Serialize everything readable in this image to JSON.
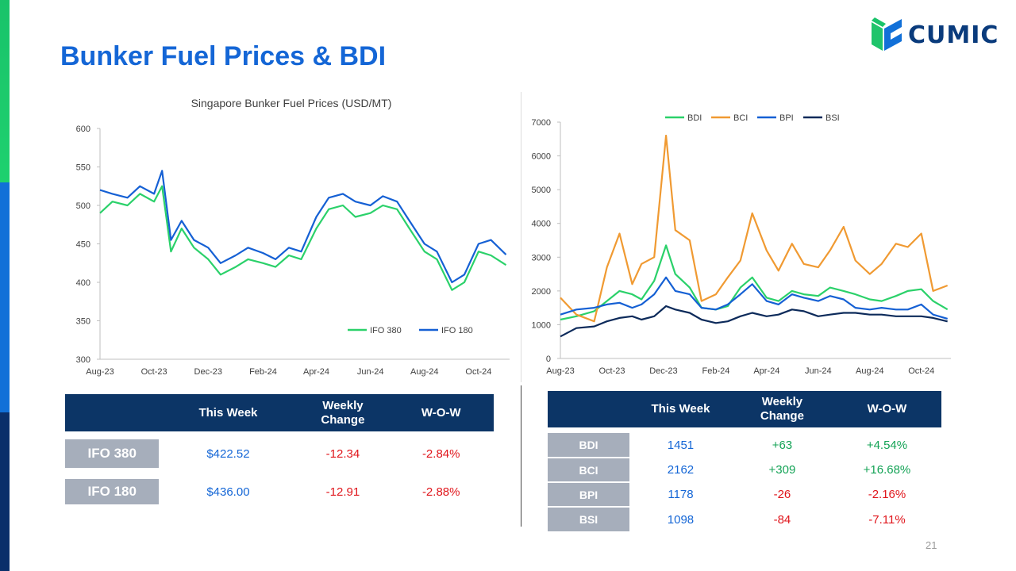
{
  "slide": {
    "title": "Bunker Fuel Prices & BDI",
    "page_number": "21"
  },
  "logo": {
    "text": "CUMIC"
  },
  "colors": {
    "title": "#1466d6",
    "table_header": "#0c3566",
    "row_label": "#a6aebb",
    "positive": "#14a356",
    "negative": "#e0151b",
    "value": "#1466d6"
  },
  "chart_data": [
    {
      "type": "line",
      "title": "Singapore Bunker Fuel Prices (USD/MT)",
      "x_tick_labels": [
        "Aug-23",
        "Oct-23",
        "Dec-23",
        "Feb-24",
        "Apr-24",
        "Jun-24",
        "Aug-24",
        "Oct-24"
      ],
      "x_range": [
        "2023-08-01",
        "2024-11-05"
      ],
      "ylim": [
        300,
        600
      ],
      "y_ticks": [
        300,
        350,
        400,
        450,
        500,
        550,
        600
      ],
      "legend_position": "bottom-right",
      "grid": false,
      "series": [
        {
          "name": "IFO 380",
          "color": "#2bd16a",
          "points": [
            [
              "2023-08-01",
              490
            ],
            [
              "2023-08-15",
              505
            ],
            [
              "2023-09-01",
              500
            ],
            [
              "2023-09-15",
              515
            ],
            [
              "2023-10-01",
              505
            ],
            [
              "2023-10-10",
              525
            ],
            [
              "2023-10-20",
              440
            ],
            [
              "2023-11-01",
              470
            ],
            [
              "2023-11-15",
              445
            ],
            [
              "2023-12-01",
              430
            ],
            [
              "2023-12-15",
              410
            ],
            [
              "2024-01-01",
              420
            ],
            [
              "2024-01-15",
              430
            ],
            [
              "2024-02-01",
              425
            ],
            [
              "2024-02-15",
              420
            ],
            [
              "2024-03-01",
              435
            ],
            [
              "2024-03-15",
              430
            ],
            [
              "2024-04-01",
              470
            ],
            [
              "2024-04-15",
              495
            ],
            [
              "2024-05-01",
              500
            ],
            [
              "2024-05-15",
              485
            ],
            [
              "2024-06-01",
              490
            ],
            [
              "2024-06-15",
              500
            ],
            [
              "2024-07-01",
              495
            ],
            [
              "2024-07-15",
              470
            ],
            [
              "2024-08-01",
              440
            ],
            [
              "2024-08-15",
              430
            ],
            [
              "2024-09-01",
              390
            ],
            [
              "2024-09-15",
              400
            ],
            [
              "2024-10-01",
              440
            ],
            [
              "2024-10-15",
              435
            ],
            [
              "2024-11-01",
              422.52
            ]
          ]
        },
        {
          "name": "IFO 180",
          "color": "#1560d4",
          "points": [
            [
              "2023-08-01",
              520
            ],
            [
              "2023-08-15",
              515
            ],
            [
              "2023-09-01",
              510
            ],
            [
              "2023-09-15",
              525
            ],
            [
              "2023-10-01",
              515
            ],
            [
              "2023-10-10",
              545
            ],
            [
              "2023-10-20",
              455
            ],
            [
              "2023-11-01",
              480
            ],
            [
              "2023-11-15",
              455
            ],
            [
              "2023-12-01",
              445
            ],
            [
              "2023-12-15",
              425
            ],
            [
              "2024-01-01",
              435
            ],
            [
              "2024-01-15",
              445
            ],
            [
              "2024-02-01",
              438
            ],
            [
              "2024-02-15",
              430
            ],
            [
              "2024-03-01",
              445
            ],
            [
              "2024-03-15",
              440
            ],
            [
              "2024-04-01",
              485
            ],
            [
              "2024-04-15",
              510
            ],
            [
              "2024-05-01",
              515
            ],
            [
              "2024-05-15",
              505
            ],
            [
              "2024-06-01",
              500
            ],
            [
              "2024-06-15",
              512
            ],
            [
              "2024-07-01",
              505
            ],
            [
              "2024-07-15",
              480
            ],
            [
              "2024-08-01",
              450
            ],
            [
              "2024-08-15",
              440
            ],
            [
              "2024-09-01",
              400
            ],
            [
              "2024-09-15",
              410
            ],
            [
              "2024-10-01",
              450
            ],
            [
              "2024-10-15",
              455
            ],
            [
              "2024-11-01",
              436.0
            ]
          ]
        }
      ]
    },
    {
      "type": "line",
      "title": "",
      "x_tick_labels": [
        "Aug-23",
        "Oct-23",
        "Dec-23",
        "Feb-24",
        "Apr-24",
        "Jun-24",
        "Aug-24",
        "Oct-24"
      ],
      "x_range": [
        "2023-08-01",
        "2024-11-05"
      ],
      "ylim": [
        0,
        7000
      ],
      "y_ticks": [
        0,
        1000,
        2000,
        3000,
        4000,
        5000,
        6000,
        7000
      ],
      "legend_position": "top",
      "grid": false,
      "series": [
        {
          "name": "BDI",
          "color": "#2bd16a",
          "points": [
            [
              "2023-08-01",
              1150
            ],
            [
              "2023-08-20",
              1250
            ],
            [
              "2023-09-10",
              1400
            ],
            [
              "2023-09-25",
              1700
            ],
            [
              "2023-10-10",
              2000
            ],
            [
              "2023-10-25",
              1900
            ],
            [
              "2023-11-05",
              1750
            ],
            [
              "2023-11-20",
              2300
            ],
            [
              "2023-12-04",
              3350
            ],
            [
              "2023-12-15",
              2500
            ],
            [
              "2024-01-01",
              2100
            ],
            [
              "2024-01-15",
              1500
            ],
            [
              "2024-02-01",
              1450
            ],
            [
              "2024-02-15",
              1550
            ],
            [
              "2024-03-01",
              2100
            ],
            [
              "2024-03-15",
              2400
            ],
            [
              "2024-04-01",
              1800
            ],
            [
              "2024-04-15",
              1700
            ],
            [
              "2024-05-01",
              2000
            ],
            [
              "2024-05-15",
              1900
            ],
            [
              "2024-06-01",
              1850
            ],
            [
              "2024-06-15",
              2100
            ],
            [
              "2024-07-01",
              2000
            ],
            [
              "2024-07-15",
              1900
            ],
            [
              "2024-08-01",
              1750
            ],
            [
              "2024-08-15",
              1700
            ],
            [
              "2024-09-01",
              1850
            ],
            [
              "2024-09-15",
              2000
            ],
            [
              "2024-10-01",
              2050
            ],
            [
              "2024-10-15",
              1700
            ],
            [
              "2024-11-01",
              1451
            ]
          ]
        },
        {
          "name": "BCI",
          "color": "#f09a32",
          "points": [
            [
              "2023-08-01",
              1800
            ],
            [
              "2023-08-20",
              1300
            ],
            [
              "2023-09-10",
              1100
            ],
            [
              "2023-09-25",
              2700
            ],
            [
              "2023-10-10",
              3700
            ],
            [
              "2023-10-25",
              2200
            ],
            [
              "2023-11-05",
              2800
            ],
            [
              "2023-11-20",
              3000
            ],
            [
              "2023-12-04",
              6600
            ],
            [
              "2023-12-15",
              3800
            ],
            [
              "2024-01-01",
              3500
            ],
            [
              "2024-01-15",
              1700
            ],
            [
              "2024-02-01",
              1900
            ],
            [
              "2024-02-15",
              2400
            ],
            [
              "2024-03-01",
              2900
            ],
            [
              "2024-03-15",
              4300
            ],
            [
              "2024-04-01",
              3200
            ],
            [
              "2024-04-15",
              2600
            ],
            [
              "2024-05-01",
              3400
            ],
            [
              "2024-05-15",
              2800
            ],
            [
              "2024-06-01",
              2700
            ],
            [
              "2024-06-15",
              3200
            ],
            [
              "2024-07-01",
              3900
            ],
            [
              "2024-07-15",
              2900
            ],
            [
              "2024-08-01",
              2500
            ],
            [
              "2024-08-15",
              2800
            ],
            [
              "2024-09-01",
              3400
            ],
            [
              "2024-09-15",
              3300
            ],
            [
              "2024-10-01",
              3700
            ],
            [
              "2024-10-15",
              2000
            ],
            [
              "2024-11-01",
              2162
            ]
          ]
        },
        {
          "name": "BPI",
          "color": "#1560d4",
          "points": [
            [
              "2023-08-01",
              1300
            ],
            [
              "2023-08-20",
              1450
            ],
            [
              "2023-09-10",
              1500
            ],
            [
              "2023-09-25",
              1600
            ],
            [
              "2023-10-10",
              1650
            ],
            [
              "2023-10-25",
              1500
            ],
            [
              "2023-11-05",
              1600
            ],
            [
              "2023-11-20",
              1900
            ],
            [
              "2023-12-04",
              2400
            ],
            [
              "2023-12-15",
              2000
            ],
            [
              "2024-01-01",
              1900
            ],
            [
              "2024-01-15",
              1500
            ],
            [
              "2024-02-01",
              1450
            ],
            [
              "2024-02-15",
              1600
            ],
            [
              "2024-03-01",
              1900
            ],
            [
              "2024-03-15",
              2200
            ],
            [
              "2024-04-01",
              1700
            ],
            [
              "2024-04-15",
              1600
            ],
            [
              "2024-05-01",
              1900
            ],
            [
              "2024-05-15",
              1800
            ],
            [
              "2024-06-01",
              1700
            ],
            [
              "2024-06-15",
              1850
            ],
            [
              "2024-07-01",
              1750
            ],
            [
              "2024-07-15",
              1500
            ],
            [
              "2024-08-01",
              1450
            ],
            [
              "2024-08-15",
              1500
            ],
            [
              "2024-09-01",
              1450
            ],
            [
              "2024-09-15",
              1450
            ],
            [
              "2024-10-01",
              1600
            ],
            [
              "2024-10-15",
              1300
            ],
            [
              "2024-11-01",
              1178
            ]
          ]
        },
        {
          "name": "BSI",
          "color": "#0c2a5a",
          "points": [
            [
              "2023-08-01",
              650
            ],
            [
              "2023-08-20",
              900
            ],
            [
              "2023-09-10",
              950
            ],
            [
              "2023-09-25",
              1100
            ],
            [
              "2023-10-10",
              1200
            ],
            [
              "2023-10-25",
              1250
            ],
            [
              "2023-11-05",
              1150
            ],
            [
              "2023-11-20",
              1250
            ],
            [
              "2023-12-04",
              1550
            ],
            [
              "2023-12-15",
              1450
            ],
            [
              "2024-01-01",
              1350
            ],
            [
              "2024-01-15",
              1150
            ],
            [
              "2024-02-01",
              1050
            ],
            [
              "2024-02-15",
              1100
            ],
            [
              "2024-03-01",
              1250
            ],
            [
              "2024-03-15",
              1350
            ],
            [
              "2024-04-01",
              1250
            ],
            [
              "2024-04-15",
              1300
            ],
            [
              "2024-05-01",
              1450
            ],
            [
              "2024-05-15",
              1400
            ],
            [
              "2024-06-01",
              1250
            ],
            [
              "2024-06-15",
              1300
            ],
            [
              "2024-07-01",
              1350
            ],
            [
              "2024-07-15",
              1350
            ],
            [
              "2024-08-01",
              1300
            ],
            [
              "2024-08-15",
              1300
            ],
            [
              "2024-09-01",
              1250
            ],
            [
              "2024-09-15",
              1250
            ],
            [
              "2024-10-01",
              1250
            ],
            [
              "2024-10-15",
              1200
            ],
            [
              "2024-11-01",
              1098
            ]
          ]
        }
      ]
    }
  ],
  "fuel_table": {
    "headers": [
      "",
      "This Week",
      "Weekly Change",
      "W-O-W"
    ],
    "rows": [
      {
        "label": "IFO 380",
        "this_week": "$422.52",
        "weekly_change": "-12.34",
        "wow": "-2.84%",
        "trend": "negative"
      },
      {
        "label": "IFO 180",
        "this_week": "$436.00",
        "weekly_change": "-12.91",
        "wow": "-2.88%",
        "trend": "negative"
      }
    ]
  },
  "baltic_table": {
    "headers": [
      "",
      "This Week",
      "Weekly Change",
      "W-O-W"
    ],
    "rows": [
      {
        "label": "BDI",
        "this_week": "1451",
        "weekly_change": "+63",
        "wow": "+4.54%",
        "trend": "positive"
      },
      {
        "label": "BCI",
        "this_week": "2162",
        "weekly_change": "+309",
        "wow": "+16.68%",
        "trend": "positive"
      },
      {
        "label": "BPI",
        "this_week": "1178",
        "weekly_change": "-26",
        "wow": "-2.16%",
        "trend": "negative"
      },
      {
        "label": "BSI",
        "this_week": "1098",
        "weekly_change": "-84",
        "wow": "-7.11%",
        "trend": "negative"
      }
    ]
  }
}
